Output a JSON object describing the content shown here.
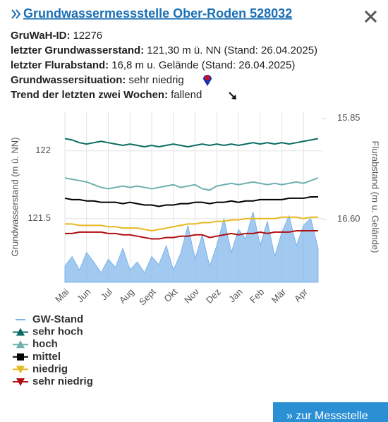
{
  "header": {
    "title": "Grundwassermessstelle Ober-Roden 528032"
  },
  "info": [
    {
      "label": "GruWaH-ID:",
      "value": "12276"
    },
    {
      "label": "letzter Grundwasserstand:",
      "value": "121,30 m ü. NN (Stand: 26.04.2025)"
    },
    {
      "label": "letzter Flurabstand:",
      "value": "16,8 m u. Gelände (Stand: 26.04.2025)"
    },
    {
      "label": "Grundwassersituation:",
      "value": "sehr niedrig"
    },
    {
      "label": "Trend der letzten zwei Wochen:",
      "value": "fallend"
    }
  ],
  "button": "» zur Messstelle",
  "chart_data": {
    "type": "line",
    "y_label": "Grundwasserstand (m ü. NN)",
    "y2_label": "Flurabstand (m u. Gelände)",
    "x": [
      0,
      0.33,
      0.67,
      1,
      1.33,
      1.67,
      2,
      2.33,
      2.67,
      3,
      3.33,
      3.67,
      4,
      4.33,
      4.67,
      5,
      5.33,
      5.67,
      6,
      6.33,
      6.67,
      7,
      7.33,
      7.67,
      8,
      8.33,
      8.67,
      9,
      9.33,
      9.67,
      10,
      10.33,
      10.67,
      11,
      11.33,
      11.67
    ],
    "xlim": [
      0,
      11.9
    ],
    "xticks": [
      {
        "value": 0,
        "label": "Mai"
      },
      {
        "value": 1,
        "label": "Jun"
      },
      {
        "value": 2,
        "label": "Jul"
      },
      {
        "value": 3,
        "label": "Aug"
      },
      {
        "value": 4,
        "label": "Sept"
      },
      {
        "value": 5,
        "label": "Okt"
      },
      {
        "value": 6,
        "label": "Nov"
      },
      {
        "value": 7,
        "label": "Dez"
      },
      {
        "value": 8,
        "label": "Jan"
      },
      {
        "value": 9,
        "label": "Feb"
      },
      {
        "value": 10,
        "label": "Mär"
      },
      {
        "value": 11,
        "label": "Apr"
      }
    ],
    "ylim": [
      121.03,
      122.29
    ],
    "yticks": [
      121.5,
      122
    ],
    "y2lim": [
      17.07,
      15.8
    ],
    "y2ticks": [
      15.85,
      {
        "value": 16.6,
        "label": "16.60"
      }
    ],
    "grid": true,
    "series": [
      {
        "name": "GW-Stand",
        "color": "#7ab3ea",
        "area": true,
        "values": [
          121.15,
          121.22,
          121.12,
          121.25,
          121.18,
          121.1,
          121.2,
          121.14,
          121.28,
          121.12,
          121.18,
          121.1,
          121.22,
          121.16,
          121.3,
          121.12,
          121.24,
          121.45,
          121.2,
          121.38,
          121.15,
          121.3,
          121.5,
          121.25,
          121.42,
          121.35,
          121.55,
          121.3,
          121.48,
          121.22,
          121.4,
          121.52,
          121.3,
          121.45,
          121.5,
          121.28
        ]
      },
      {
        "name": "sehr hoch",
        "color": "#0b6b63",
        "marker": "up",
        "values": [
          122.09,
          122.08,
          122.06,
          122.05,
          122.06,
          122.07,
          122.06,
          122.05,
          122.04,
          122.05,
          122.04,
          122.03,
          122.04,
          122.03,
          122.04,
          122.05,
          122.04,
          122.03,
          122.04,
          122.05,
          122.04,
          122.05,
          122.04,
          122.05,
          122.04,
          122.05,
          122.06,
          122.05,
          122.06,
          122.05,
          122.06,
          122.05,
          122.06,
          122.07,
          122.08,
          122.09
        ]
      },
      {
        "name": "hoch",
        "color": "#6fb0ae",
        "marker": "up",
        "values": [
          121.8,
          121.79,
          121.78,
          121.77,
          121.75,
          121.73,
          121.72,
          121.73,
          121.74,
          121.73,
          121.74,
          121.73,
          121.72,
          121.73,
          121.74,
          121.75,
          121.73,
          121.74,
          121.75,
          121.72,
          121.71,
          121.74,
          121.75,
          121.76,
          121.75,
          121.76,
          121.77,
          121.76,
          121.75,
          121.76,
          121.75,
          121.76,
          121.77,
          121.76,
          121.78,
          121.8
        ]
      },
      {
        "name": "mittel",
        "color": "#000000",
        "marker": "square",
        "values": [
          121.65,
          121.64,
          121.64,
          121.63,
          121.63,
          121.62,
          121.62,
          121.62,
          121.61,
          121.62,
          121.61,
          121.6,
          121.6,
          121.59,
          121.6,
          121.6,
          121.61,
          121.61,
          121.62,
          121.62,
          121.61,
          121.62,
          121.62,
          121.63,
          121.62,
          121.63,
          121.63,
          121.64,
          121.64,
          121.64,
          121.64,
          121.65,
          121.65,
          121.65,
          121.66,
          121.66
        ]
      },
      {
        "name": "niedrig",
        "color": "#e8b820",
        "marker": "down",
        "values": [
          121.46,
          121.46,
          121.45,
          121.45,
          121.45,
          121.45,
          121.44,
          121.44,
          121.43,
          121.43,
          121.43,
          121.42,
          121.41,
          121.42,
          121.43,
          121.44,
          121.45,
          121.46,
          121.46,
          121.47,
          121.47,
          121.48,
          121.48,
          121.49,
          121.49,
          121.5,
          121.5,
          121.5,
          121.5,
          121.5,
          121.51,
          121.51,
          121.51,
          121.5,
          121.51,
          121.51
        ]
      },
      {
        "name": "sehr niedrig",
        "color": "#b00f12",
        "marker": "down",
        "values": [
          121.39,
          121.39,
          121.4,
          121.4,
          121.4,
          121.4,
          121.39,
          121.39,
          121.38,
          121.38,
          121.37,
          121.36,
          121.35,
          121.35,
          121.36,
          121.36,
          121.37,
          121.37,
          121.38,
          121.38,
          121.36,
          121.37,
          121.38,
          121.39,
          121.38,
          121.39,
          121.39,
          121.4,
          121.39,
          121.4,
          121.4,
          121.4,
          121.41,
          121.41,
          121.41,
          121.41
        ]
      }
    ]
  }
}
